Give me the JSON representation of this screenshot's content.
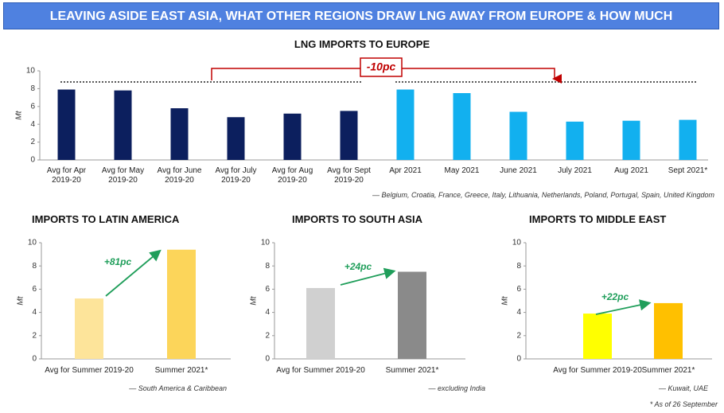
{
  "header": {
    "title": "LEAVING ASIDE EAST ASIA, WHAT OTHER REGIONS DRAW LNG AWAY FROM EUROPE & HOW MUCH"
  },
  "chart_data": [
    {
      "type": "bar",
      "title": "LNG IMPORTS TO EUROPE",
      "y_label": "Mt",
      "categories": [
        "Avg for Apr 2019-20",
        "Avg for May 2019-20",
        "Avg for June 2019-20",
        "Avg for July 2019-20",
        "Avg for Aug 2019-20",
        "Avg for Sept 2019-20",
        "Apr 2021",
        "May 2021",
        "June 2021",
        "July 2021",
        "Aug 2021",
        "Sept 2021*"
      ],
      "values": [
        7.9,
        7.8,
        5.8,
        4.8,
        5.2,
        5.5,
        7.9,
        7.5,
        5.4,
        4.3,
        4.4,
        4.5
      ],
      "colors": [
        "#0c1f5e",
        "#0c1f5e",
        "#0c1f5e",
        "#0c1f5e",
        "#0c1f5e",
        "#0c1f5e",
        "#12b0ef",
        "#12b0ef",
        "#12b0ef",
        "#12b0ef",
        "#12b0ef",
        "#12b0ef"
      ],
      "ylim": [
        0,
        10
      ],
      "yticks": [
        0,
        2,
        4,
        6,
        8,
        10
      ],
      "annotation": "-10pc",
      "note": "— Belgium, Croatia, France, Greece, Italy, Lithuania, Netherlands, Poland, Portugal, Spain, United Kingdom"
    },
    {
      "type": "bar",
      "title": "IMPORTS TO LATIN AMERICA",
      "y_label": "Mt",
      "categories": [
        "Avg for Summer 2019-20",
        "Summer 2021*"
      ],
      "values": [
        5.2,
        9.4
      ],
      "colors": [
        "#fde49a",
        "#fcd55a"
      ],
      "ylim": [
        0,
        10
      ],
      "yticks": [
        0,
        2,
        4,
        6,
        8,
        10
      ],
      "annotation": "+81pc",
      "note": "— South America & Caribbean"
    },
    {
      "type": "bar",
      "title": "IMPORTS TO SOUTH ASIA",
      "y_label": "Mt",
      "categories": [
        "Avg for Summer 2019-20",
        "Summer 2021*"
      ],
      "values": [
        6.1,
        7.5
      ],
      "colors": [
        "#d0d0d0",
        "#8a8a8a"
      ],
      "ylim": [
        0,
        10
      ],
      "yticks": [
        0,
        2,
        4,
        6,
        8,
        10
      ],
      "annotation": "+24pc",
      "note": "— excluding India"
    },
    {
      "type": "bar",
      "title": "IMPORTS TO MIDDLE EAST",
      "y_label": "Mt",
      "categories": [
        "Avg for Summer 2019-20",
        "Summer 2021*"
      ],
      "values": [
        3.9,
        4.8
      ],
      "colors": [
        "#ffff00",
        "#ffc000"
      ],
      "ylim": [
        0,
        10
      ],
      "yticks": [
        0,
        2,
        4,
        6,
        8,
        10
      ],
      "annotation": "+22pc",
      "note": "— Kuwait, UAE"
    }
  ],
  "footnote": "* As of 26 September"
}
